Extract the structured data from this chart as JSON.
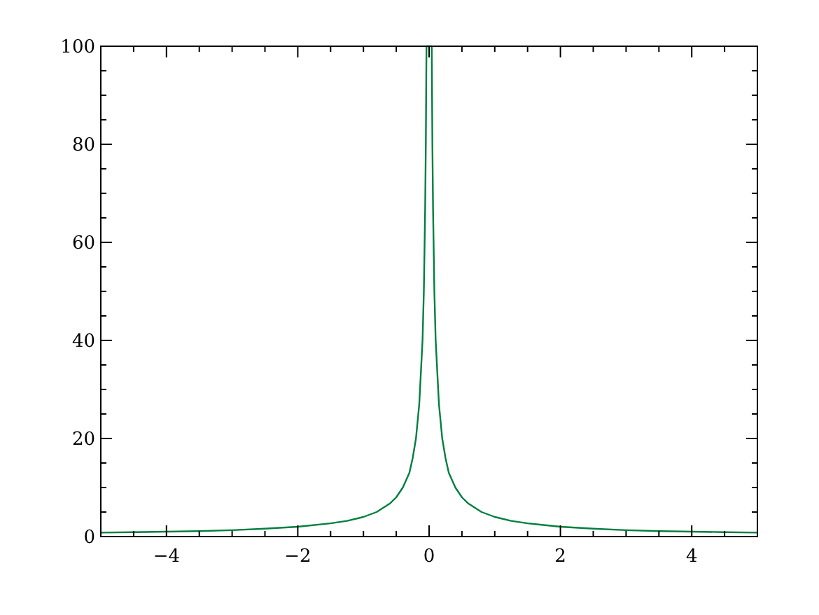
{
  "chart_data": {
    "type": "line",
    "xlim": [
      -5,
      5
    ],
    "ylim": [
      0,
      100
    ],
    "xticks": [
      {
        "value": -5,
        "label": null
      },
      {
        "value": -4.5,
        "label": null
      },
      {
        "value": -4,
        "label": "−4"
      },
      {
        "value": -3.5,
        "label": null
      },
      {
        "value": -3,
        "label": null
      },
      {
        "value": -2.5,
        "label": null
      },
      {
        "value": -2,
        "label": "−2"
      },
      {
        "value": -1.5,
        "label": null
      },
      {
        "value": -1,
        "label": null
      },
      {
        "value": -0.5,
        "label": null
      },
      0,
      {
        "value": 0.5,
        "label": null
      },
      {
        "value": 1,
        "label": null
      },
      {
        "value": 1.5,
        "label": null
      },
      2,
      {
        "value": 2.5,
        "label": null
      },
      {
        "value": 3,
        "label": null
      },
      {
        "value": 3.5,
        "label": null
      },
      4,
      {
        "value": 4.5,
        "label": null
      },
      {
        "value": 5,
        "label": null
      }
    ],
    "yticks": [
      0,
      {
        "value": 5,
        "label": null
      },
      {
        "value": 10,
        "label": null
      },
      {
        "value": 15,
        "label": null
      },
      20,
      {
        "value": 25,
        "label": null
      },
      {
        "value": 30,
        "label": null
      },
      {
        "value": 35,
        "label": null
      },
      40,
      {
        "value": 45,
        "label": null
      },
      {
        "value": 50,
        "label": null
      },
      {
        "value": 55,
        "label": null
      },
      60,
      {
        "value": 65,
        "label": null
      },
      {
        "value": 70,
        "label": null
      },
      {
        "value": 75,
        "label": null
      },
      80,
      {
        "value": 85,
        "label": null
      },
      {
        "value": 90,
        "label": null
      },
      {
        "value": 95,
        "label": null
      },
      100
    ],
    "series": [
      {
        "color": "#007f3f",
        "x": [
          -5,
          -4.5,
          -4,
          -3.5,
          -3,
          -2.5,
          -2,
          -1.5,
          -1.25,
          -1,
          -0.8,
          -0.6,
          -0.5,
          -0.4,
          -0.3,
          -0.25,
          -0.2,
          -0.15,
          -0.1,
          -0.08,
          -0.06,
          -0.05,
          -0.04,
          0.04,
          0.05,
          0.06,
          0.08,
          0.1,
          0.15,
          0.2,
          0.25,
          0.3,
          0.4,
          0.5,
          0.6,
          0.8,
          1,
          1.25,
          1.5,
          2,
          2.5,
          3,
          3.5,
          4,
          4.5,
          5
        ],
        "values": [
          0.8,
          0.9,
          1,
          1.1,
          1.3,
          1.6,
          2,
          2.7,
          3.2,
          4,
          5,
          6.7,
          8,
          10,
          13,
          16,
          20,
          27,
          40,
          50,
          67,
          80,
          100,
          100,
          80,
          67,
          50,
          40,
          27,
          20,
          16,
          13,
          10,
          8,
          6.7,
          5,
          4,
          3.2,
          2.7,
          2,
          1.6,
          1.3,
          1.1,
          1,
          0.9,
          0.8
        ]
      }
    ]
  }
}
